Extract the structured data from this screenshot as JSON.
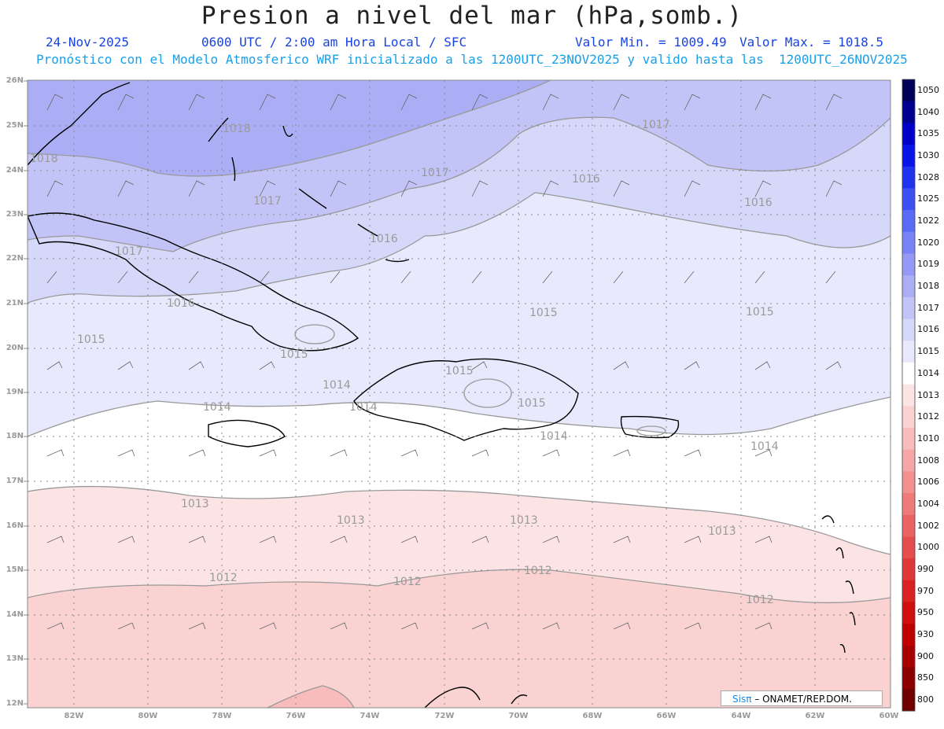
{
  "title": "Presion a nivel del mar (hPa,somb.)",
  "header": {
    "date": "24-Nov-2025",
    "time": "0600 UTC / 2:00 am Hora Local / SFC",
    "min": "Valor Min. = 1009.49",
    "max": "Valor Max. = 1018.5",
    "model_line": "Pronóstico con el Modelo Atmosferico WRF inicializado a las 1200UTC_23NOV2025 y valido hasta las  1200UTC_26NOV2025"
  },
  "lat_labels": [
    "26N",
    "25N",
    "24N",
    "23N",
    "22N",
    "21N",
    "20N",
    "19N",
    "18N",
    "17N",
    "16N",
    "15N",
    "14N",
    "13N",
    "12N"
  ],
  "lon_labels": [
    "82W",
    "80W",
    "78W",
    "76W",
    "74W",
    "72W",
    "70W",
    "68W",
    "66W",
    "64W",
    "62W",
    "60W"
  ],
  "colorbar": {
    "levels": [
      "1050",
      "1040",
      "1035",
      "1030",
      "1028",
      "1025",
      "1022",
      "1020",
      "1019",
      "1018",
      "1017",
      "1016",
      "1015",
      "1014",
      "1013",
      "1012",
      "1010",
      "1008",
      "1006",
      "1004",
      "1002",
      "1000",
      "990",
      "970",
      "950",
      "930",
      "900",
      "850",
      "800"
    ],
    "colors": [
      "#00005a",
      "#000090",
      "#0000c8",
      "#0a14e6",
      "#1e32f0",
      "#3c50f5",
      "#5a6cf5",
      "#7884f5",
      "#9698f5",
      "#acaef5",
      "#c2c4f7",
      "#d6d8fa",
      "#e8e9fc",
      "#ffffff",
      "#fde4e4",
      "#fbd2d2",
      "#f8bcbc",
      "#f5a6a6",
      "#f29090",
      "#ee7a7a",
      "#ea6464",
      "#e64e4e",
      "#e03838",
      "#da2222",
      "#d00e0e",
      "#c00000",
      "#a80000",
      "#8c0000",
      "#700000"
    ]
  },
  "contours": [
    {
      "text": "1018"
    },
    {
      "text": "1018"
    },
    {
      "text": "1017"
    },
    {
      "text": "1017"
    },
    {
      "text": "1017"
    },
    {
      "text": "1017"
    },
    {
      "text": "1016"
    },
    {
      "text": "1016"
    },
    {
      "text": "1016"
    },
    {
      "text": "1016"
    },
    {
      "text": "1015"
    },
    {
      "text": "1015"
    },
    {
      "text": "1015"
    },
    {
      "text": "1015"
    },
    {
      "text": "1015"
    },
    {
      "text": "1015"
    },
    {
      "text": "1014"
    },
    {
      "text": "1014"
    },
    {
      "text": "1014"
    },
    {
      "text": "1014"
    },
    {
      "text": "1014"
    },
    {
      "text": "1013"
    },
    {
      "text": "1013"
    },
    {
      "text": "1013"
    },
    {
      "text": "1013"
    },
    {
      "text": "1012"
    },
    {
      "text": "1012"
    },
    {
      "text": "1012"
    },
    {
      "text": "1012"
    }
  ],
  "credit": {
    "sis": "Sisπ",
    "org": "– ONAMET/REP.DOM."
  }
}
